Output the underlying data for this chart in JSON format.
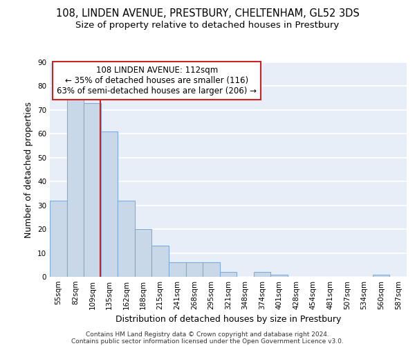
{
  "title1": "108, LINDEN AVENUE, PRESTBURY, CHELTENHAM, GL52 3DS",
  "title2": "Size of property relative to detached houses in Prestbury",
  "xlabel": "Distribution of detached houses by size in Prestbury",
  "ylabel": "Number of detached properties",
  "bin_labels": [
    "55sqm",
    "82sqm",
    "109sqm",
    "135sqm",
    "162sqm",
    "188sqm",
    "215sqm",
    "241sqm",
    "268sqm",
    "295sqm",
    "321sqm",
    "348sqm",
    "374sqm",
    "401sqm",
    "428sqm",
    "454sqm",
    "481sqm",
    "507sqm",
    "534sqm",
    "560sqm",
    "587sqm"
  ],
  "bar_values": [
    32,
    75,
    73,
    61,
    32,
    20,
    13,
    6,
    6,
    6,
    2,
    0,
    2,
    1,
    0,
    0,
    0,
    0,
    0,
    1,
    0
  ],
  "bar_color": "#c8d8e8",
  "bar_edge_color": "#7aace0",
  "vline_color": "#cc2222",
  "annotation_text": "108 LINDEN AVENUE: 112sqm\n← 35% of detached houses are smaller (116)\n63% of semi-detached houses are larger (206) →",
  "annotation_box_color": "white",
  "annotation_box_edge": "#cc2222",
  "ylim": [
    0,
    90
  ],
  "yticks": [
    0,
    10,
    20,
    30,
    40,
    50,
    60,
    70,
    80,
    90
  ],
  "footer_line1": "Contains HM Land Registry data © Crown copyright and database right 2024.",
  "footer_line2": "Contains public sector information licensed under the Open Government Licence v3.0.",
  "bg_color": "#e8eef8",
  "grid_color": "white",
  "title_fontsize": 10.5,
  "subtitle_fontsize": 9.5,
  "axis_label_fontsize": 9,
  "tick_fontsize": 7.5,
  "annotation_fontsize": 8.5,
  "footer_fontsize": 6.5,
  "vline_x_idx": 2.47
}
